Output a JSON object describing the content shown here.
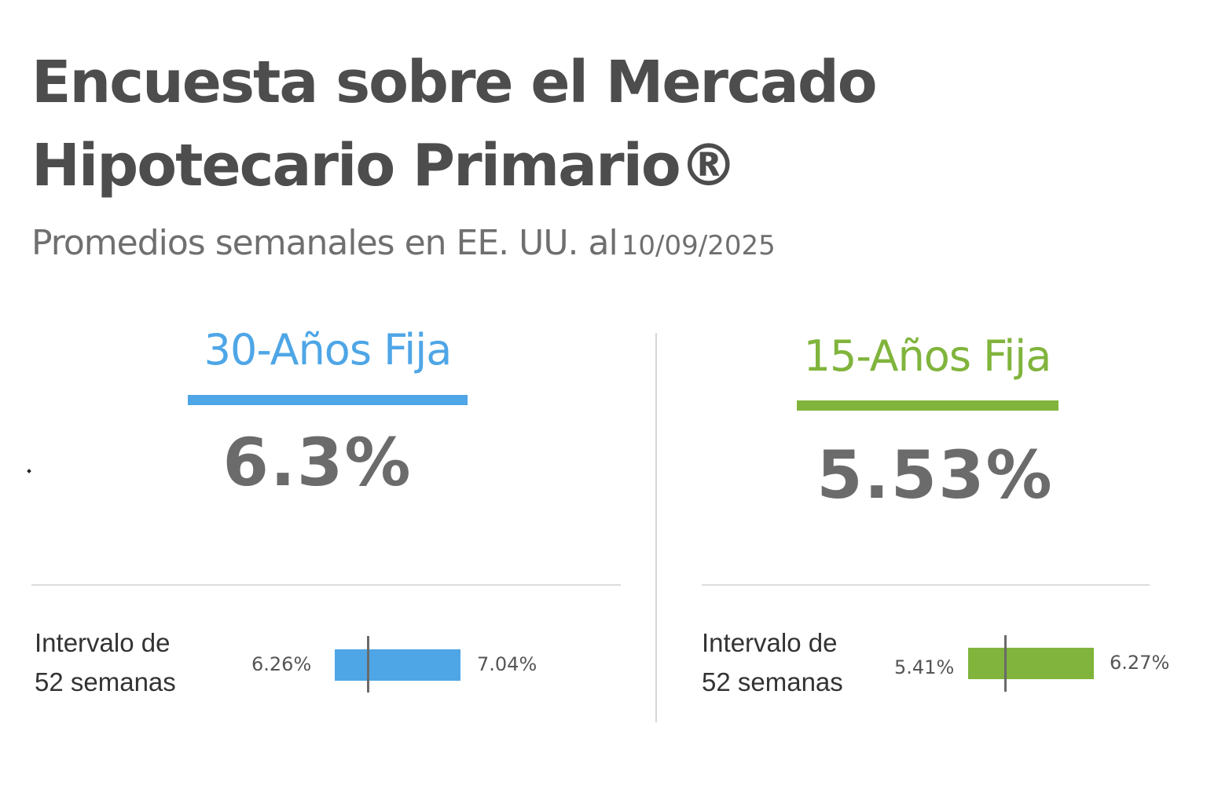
{
  "header": {
    "title_line1": "Encuesta sobre el Mercado",
    "title_line2": "Hipotecario Primario®",
    "subtitle": "Promedios semanales en EE. UU. al",
    "date": "10/09/2025"
  },
  "colors": {
    "fixed30_accent": "#4ea6e6",
    "fixed15_accent": "#80b43c",
    "rate_text": "#6b6b6b",
    "title_text": "#4d4d4d"
  },
  "fixed30": {
    "title": "30-Años Fija",
    "rate": "6.3%",
    "range_label_line1": "Intervalo de",
    "range_label_line2": "52 semanas",
    "range_low": "6.26%",
    "range_high": "7.04%",
    "range_current": 6.3
  },
  "fixed15": {
    "title": "15-Años Fija",
    "rate": "5.53%",
    "range_label_line1": "Intervalo de",
    "range_label_line2": "52 semanas",
    "range_low": "5.41%",
    "range_high": "6.27%",
    "range_current": 5.53
  }
}
